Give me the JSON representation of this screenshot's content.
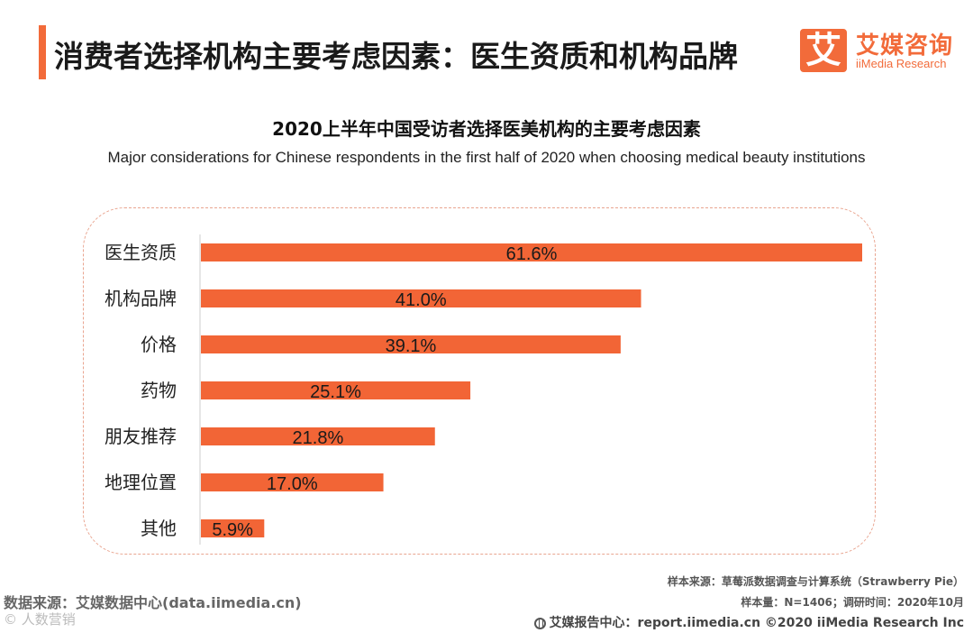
{
  "header": {
    "title": "消费者选择机构主要考虑因素：医生资质和机构品牌",
    "logo_mark": "艾",
    "logo_cn": "艾媒咨询",
    "logo_en": "iiMedia Research"
  },
  "chart_data": {
    "type": "bar",
    "orientation": "horizontal",
    "title": "2020上半年中国受访者选择医美机构的主要考虑因素",
    "subtitle": "Major considerations for Chinese respondents in the first half of 2020 when choosing medical beauty institutions",
    "categories": [
      "医生资质",
      "机构品牌",
      "价格",
      "药物",
      "朋友推荐",
      "地理位置",
      "其他"
    ],
    "values": [
      61.6,
      41.0,
      39.1,
      25.1,
      21.8,
      17.0,
      5.9
    ],
    "value_labels": [
      "61.6%",
      "41.0%",
      "39.1%",
      "25.1%",
      "21.8%",
      "17.0%",
      "5.9%"
    ],
    "xlim": [
      0,
      61.6
    ],
    "bar_color": "#f26536",
    "xlabel": "",
    "ylabel": ""
  },
  "footer": {
    "data_source": "数据来源：艾媒数据中心(data.iimedia.cn)",
    "watermark": "© 人数营销",
    "sample_source": "样本来源：草莓派数据调查与计算系统（Strawberry Pie）",
    "sample_size": "样本量：N=1406；调研时间：2020年10月",
    "report_center": "艾媒报告中心：report.iimedia.cn  ©2020  iiMedia Research  Inc"
  },
  "colors": {
    "accent": "#f26b3a",
    "frame_border": "#e9a590"
  }
}
